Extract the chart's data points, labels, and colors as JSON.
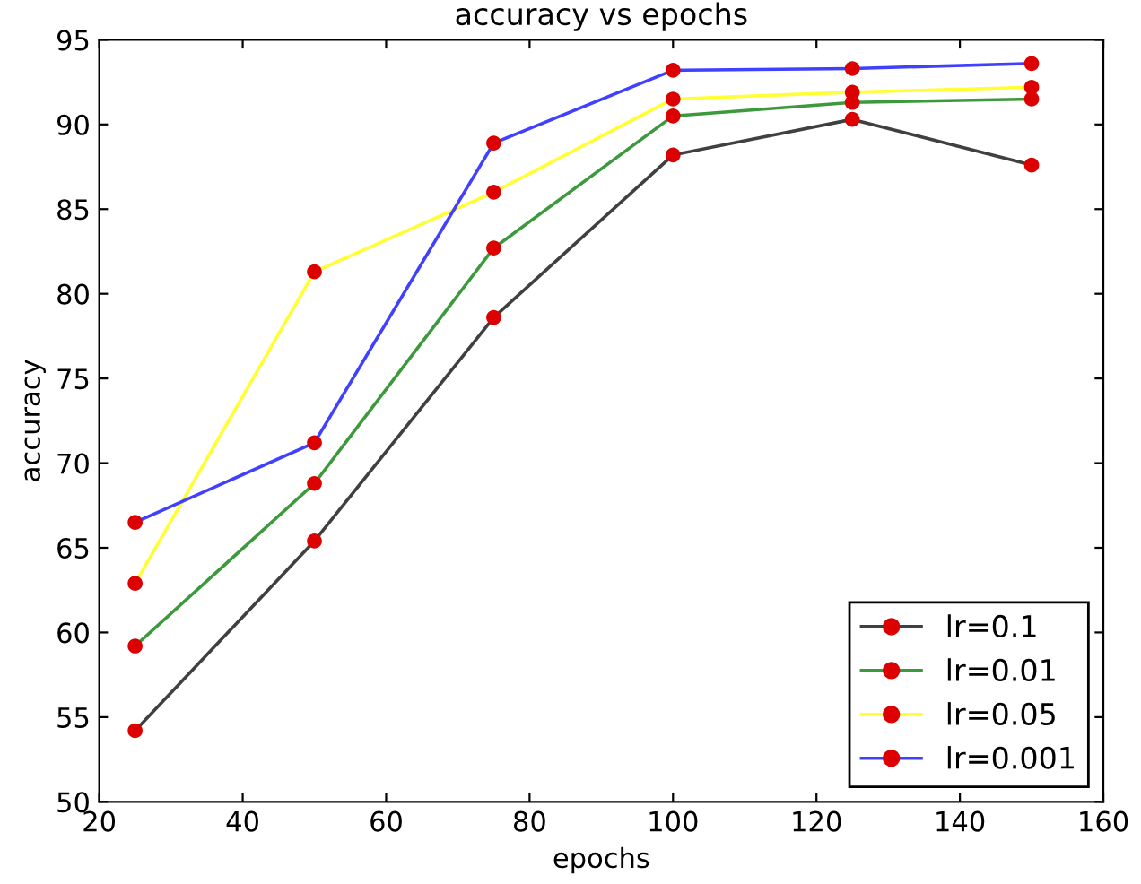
{
  "chart_data": {
    "type": "line",
    "title": "accuracy vs epochs",
    "xlabel": "epochs",
    "ylabel": "accuracy",
    "x": [
      25,
      50,
      75,
      100,
      125,
      150
    ],
    "series": [
      {
        "name": "lr=0.1",
        "color": "#404040",
        "colors": [
          "#dd0000",
          "#dd0000",
          "#dd0000",
          "#dd0000",
          "#dd0000",
          "#dd0000"
        ],
        "values": [
          54.2,
          65.4,
          78.6,
          88.2,
          90.3,
          87.6
        ]
      },
      {
        "name": "lr=0.01",
        "color": "#3c9a3c",
        "colors": [
          "#dd0000",
          "#dd0000",
          "#dd0000",
          "#dd0000",
          "#dd0000",
          "#dd0000"
        ],
        "values": [
          59.2,
          68.8,
          82.7,
          90.5,
          91.3,
          91.5
        ]
      },
      {
        "name": "lr=0.05",
        "color": "#ffff33",
        "colors": [
          "#dd0000",
          "#dd0000",
          "#dd0000",
          "#dd0000",
          "#dd0000",
          "#dd0000"
        ],
        "values": [
          62.9,
          81.3,
          86.0,
          91.5,
          91.9,
          92.2
        ]
      },
      {
        "name": "lr=0.001",
        "color": "#4040ff",
        "colors": [
          "#dd0000",
          "#dd0000",
          "#dd0000",
          "#dd0000",
          "#dd0000",
          "#dd0000"
        ],
        "values": [
          66.5,
          71.2,
          88.9,
          93.2,
          93.3,
          93.6
        ]
      }
    ],
    "marker": "circle",
    "xlim": [
      20,
      160
    ],
    "xticks": [
      20,
      40,
      60,
      80,
      100,
      120,
      140,
      160
    ],
    "ylim": [
      50,
      95
    ],
    "yticks": [
      50,
      55,
      60,
      65,
      70,
      75,
      80,
      85,
      90,
      95
    ],
    "grid": false,
    "legend": "bottom right"
  }
}
